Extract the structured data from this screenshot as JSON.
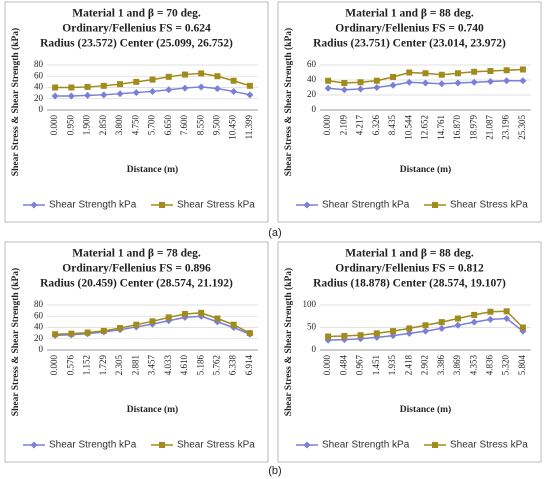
{
  "chart_data": [
    {
      "type": "line",
      "title": [
        "Material 1 and β = 70 deg.",
        "Ordinary/Fellenius FS = 0.624",
        "Radius (23.572)  Center (25.099, 26.752)"
      ],
      "xlabel": "Distance (m)",
      "ylabel": "Shear Stress & Shear Strength (kPa)",
      "categories": [
        "0.000",
        "0.950",
        "1.900",
        "2.850",
        "3.800",
        "4.750",
        "5.700",
        "6.650",
        "7.600",
        "8.550",
        "9.500",
        "10.450",
        "11.399"
      ],
      "series": [
        {
          "name": "Shear Strength kPa",
          "color": "#7b7fd6",
          "marker": "diamond",
          "values": [
            25,
            25,
            26,
            27,
            29,
            31,
            33,
            36,
            39,
            41,
            38,
            33,
            27
          ]
        },
        {
          "name": "Shear Stress kPa",
          "color": "#a08b1c",
          "marker": "square",
          "values": [
            40,
            40,
            41,
            43,
            46,
            50,
            54,
            59,
            63,
            65,
            60,
            52,
            43
          ]
        }
      ],
      "ylim": [
        0,
        80
      ],
      "yticks": [
        0,
        20,
        40,
        60,
        80
      ],
      "grid": true
    },
    {
      "type": "line",
      "title": [
        "Material 1 and β = 88 deg.",
        "Ordinary/Fellenius FS = 0.740",
        "Radius (23.751)  Center (23.014, 23.972)"
      ],
      "xlabel": "Distance (m)",
      "ylabel": "Shear Stress & Shear Strength (kPa)",
      "categories": [
        "0.000",
        "2.109",
        "4.217",
        "6.326",
        "8.435",
        "10.544",
        "12.652",
        "14.761",
        "16.870",
        "18.979",
        "21.087",
        "23.196",
        "25.305"
      ],
      "series": [
        {
          "name": "Shear Strength kPa",
          "color": "#7b7fd6",
          "marker": "diamond",
          "values": [
            29,
            27,
            28,
            30,
            33,
            37,
            36,
            35,
            36,
            37,
            38,
            39,
            39
          ]
        },
        {
          "name": "Shear Stress kPa",
          "color": "#a08b1c",
          "marker": "square",
          "values": [
            39,
            36,
            37,
            39,
            44,
            50,
            49,
            47,
            49,
            51,
            52,
            53,
            54
          ]
        }
      ],
      "ylim": [
        0,
        60
      ],
      "yticks": [
        0,
        20,
        40,
        60
      ],
      "grid": true
    },
    {
      "type": "line",
      "title": [
        "Material 1 and β = 78 deg.",
        "Ordinary/Fellenius FS = 0.896",
        "Radius (20.459)  Center (28.574, 21.192)"
      ],
      "xlabel": "Distance (m)",
      "ylabel": "Shear Stress & Shear Strength (kPa)",
      "categories": [
        "0.000",
        "0.576",
        "1.152",
        "1.729",
        "2.305",
        "2.881",
        "3.457",
        "4.033",
        "4.610",
        "5.186",
        "5.762",
        "6.338",
        "6.914"
      ],
      "series": [
        {
          "name": "Shear Strength kPa",
          "color": "#7b7fd6",
          "marker": "diamond",
          "values": [
            26,
            27,
            29,
            32,
            36,
            41,
            46,
            52,
            58,
            60,
            50,
            40,
            28
          ]
        },
        {
          "name": "Shear Stress kPa",
          "color": "#a08b1c",
          "marker": "square",
          "values": [
            28,
            29,
            31,
            34,
            39,
            45,
            51,
            58,
            64,
            66,
            56,
            45,
            30
          ]
        }
      ],
      "ylim": [
        0,
        80
      ],
      "yticks": [
        0,
        20,
        40,
        60,
        80
      ],
      "grid": true
    },
    {
      "type": "line",
      "title": [
        "Material 1 and β = 88 deg.",
        "Ordinary/Fellenius FS = 0.812",
        "Radius (18.878)  Center (28.574, 19.107)"
      ],
      "xlabel": "Distance (m)",
      "ylabel": "Shear Stress & Shear Strength (kPa)",
      "categories": [
        "0.000",
        "0.484",
        "0.967",
        "1.451",
        "1.935",
        "2.418",
        "2.902",
        "3.386",
        "3.869",
        "4.353",
        "4.836",
        "5.320",
        "5.804"
      ],
      "series": [
        {
          "name": "Shear Strength kPa",
          "color": "#7b7fd6",
          "marker": "diamond",
          "values": [
            22,
            23,
            25,
            28,
            32,
            37,
            42,
            48,
            55,
            62,
            68,
            70,
            42
          ]
        },
        {
          "name": "Shear Stress kPa",
          "color": "#a08b1c",
          "marker": "square",
          "values": [
            30,
            31,
            33,
            37,
            42,
            48,
            55,
            62,
            70,
            78,
            85,
            86,
            50
          ]
        }
      ],
      "ylim": [
        0,
        100
      ],
      "yticks": [
        0,
        50,
        100
      ],
      "grid": true
    }
  ],
  "captions": [
    "(a)",
    "(b)"
  ]
}
